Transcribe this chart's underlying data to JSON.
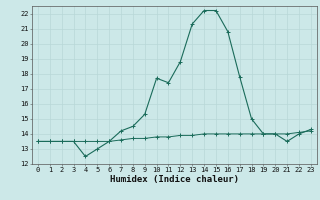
{
  "title": "",
  "xlabel": "Humidex (Indice chaleur)",
  "x": [
    0,
    1,
    2,
    3,
    4,
    5,
    6,
    7,
    8,
    9,
    10,
    11,
    12,
    13,
    14,
    15,
    16,
    17,
    18,
    19,
    20,
    21,
    22,
    23
  ],
  "y_main": [
    13.5,
    13.5,
    13.5,
    13.5,
    12.5,
    13.0,
    13.5,
    14.2,
    14.5,
    15.3,
    17.7,
    17.4,
    18.8,
    21.3,
    22.2,
    22.2,
    20.8,
    17.8,
    15.0,
    14.0,
    14.0,
    13.5,
    14.0,
    14.3
  ],
  "y_flat": [
    13.5,
    13.5,
    13.5,
    13.5,
    13.5,
    13.5,
    13.5,
    13.6,
    13.7,
    13.7,
    13.8,
    13.8,
    13.9,
    13.9,
    14.0,
    14.0,
    14.0,
    14.0,
    14.0,
    14.0,
    14.0,
    14.0,
    14.1,
    14.2
  ],
  "line_color": "#1a6b5a",
  "bg_color": "#cce8e8",
  "grid_color": "#b8d8d8",
  "ylim": [
    12,
    22.5
  ],
  "xlim": [
    -0.5,
    23.5
  ],
  "yticks": [
    12,
    13,
    14,
    15,
    16,
    17,
    18,
    19,
    20,
    21,
    22
  ],
  "xticks": [
    0,
    1,
    2,
    3,
    4,
    5,
    6,
    7,
    8,
    9,
    10,
    11,
    12,
    13,
    14,
    15,
    16,
    17,
    18,
    19,
    20,
    21,
    22,
    23
  ],
  "tick_fontsize": 5,
  "label_fontsize": 6.5
}
